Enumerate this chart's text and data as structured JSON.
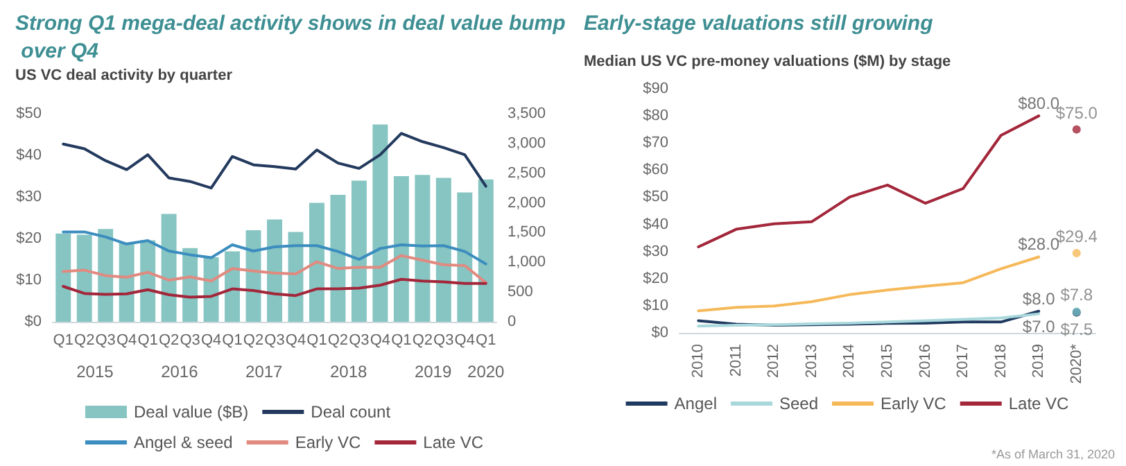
{
  "chart_data": [
    {
      "type": "bar",
      "title": "Strong Q1 mega-deal activity shows in deal value bump over Q4",
      "subtitle": "US VC deal activity by quarter",
      "categories": [
        "Q1",
        "Q2",
        "Q3",
        "Q4",
        "Q1",
        "Q2",
        "Q3",
        "Q4",
        "Q1",
        "Q2",
        "Q3",
        "Q4",
        "Q1",
        "Q2",
        "Q3",
        "Q4",
        "Q1",
        "Q2",
        "Q3",
        "Q4",
        "Q1"
      ],
      "series": [
        {
          "name": "Deal value ($B)",
          "color": "#86c5c2",
          "values": [
            21.2,
            20.9,
            22.3,
            19.0,
            19.6,
            25.9,
            17.7,
            15.5,
            16.9,
            22.0,
            24.6,
            21.6,
            28.6,
            30.5,
            33.9,
            47.4,
            35.0,
            35.3,
            34.6,
            31.1,
            34.2
          ]
        },
        {
          "name": "Deal count",
          "type": "line",
          "axis": "y2",
          "color": "#233a5e",
          "values": [
            2990,
            2910,
            2710,
            2560,
            2810,
            2420,
            2360,
            2250,
            2780,
            2640,
            2610,
            2570,
            2890,
            2670,
            2580,
            2810,
            3170,
            3030,
            2930,
            2810,
            2280
          ]
        },
        {
          "name": "Angel & seed",
          "type": "line",
          "color": "#3c8dbf",
          "values": [
            21.6,
            21.6,
            20.4,
            18.7,
            19.5,
            17.0,
            16.1,
            15.4,
            18.5,
            17.0,
            18.0,
            18.3,
            18.3,
            16.9,
            15.0,
            17.6,
            18.5,
            18.2,
            18.3,
            16.9,
            13.9
          ]
        },
        {
          "name": "Early VC",
          "type": "line",
          "color": "#e08a80",
          "values": [
            12.1,
            12.4,
            11.1,
            10.7,
            11.9,
            10.0,
            10.8,
            9.8,
            12.8,
            12.2,
            11.7,
            11.5,
            14.4,
            12.8,
            13.1,
            13.1,
            15.9,
            14.8,
            13.7,
            13.5,
            9.4
          ]
        },
        {
          "name": "Late VC",
          "type": "line",
          "color": "#a3263a",
          "values": [
            8.5,
            6.8,
            6.6,
            6.7,
            7.7,
            6.5,
            5.9,
            6.1,
            7.9,
            7.5,
            6.7,
            6.3,
            7.9,
            7.9,
            8.1,
            8.8,
            10.2,
            9.8,
            9.6,
            9.2,
            9.2
          ]
        }
      ],
      "ylim": [
        0,
        50
      ],
      "yticks": [
        {
          "value": 0,
          "label": "$0"
        },
        {
          "value": 10,
          "label": "$10"
        },
        {
          "value": 20,
          "label": "$20"
        },
        {
          "value": 30,
          "label": "$30"
        },
        {
          "value": 40,
          "label": "$40"
        },
        {
          "value": 50,
          "label": "$50"
        }
      ],
      "y2lim": [
        0,
        3500
      ],
      "y2ticks": [
        0,
        500,
        {
          "value": 1000,
          "label": "1,000"
        },
        {
          "value": 1500,
          "label": "1,500"
        },
        {
          "value": 2000,
          "label": "2,000"
        },
        {
          "value": 2500,
          "label": "2,500"
        },
        {
          "value": 3000,
          "label": "3,000"
        },
        {
          "value": 3500,
          "label": "3,500"
        }
      ],
      "annotations": [
        "2015",
        "2016",
        "2017",
        "2018",
        "2019",
        "2020"
      ],
      "grid": false,
      "legend": "bottom",
      "marker": "none",
      "line_style": "solid"
    },
    {
      "type": "line",
      "title": "Early-stage valuations still growing",
      "subtitle": "Median US VC pre-money valuations ($M) by stage",
      "categories": [
        "2010",
        "2011",
        "2012",
        "2013",
        "2014",
        "2015",
        "2016",
        "2017",
        "2018",
        "2019",
        "2020*"
      ],
      "series": [
        {
          "name": "Angel",
          "color": "#1f3a5f",
          "values": [
            4.5,
            3.2,
            2.8,
            3.0,
            3.2,
            3.5,
            3.6,
            4.0,
            4.0,
            8.0,
            null
          ],
          "value_labels": [
            null,
            null,
            null,
            null,
            null,
            null,
            null,
            null,
            null,
            "$8.0",
            null
          ]
        },
        {
          "name": "Seed",
          "color": "#a8d8dc",
          "values": [
            2.5,
            2.8,
            3.0,
            3.3,
            3.6,
            4.0,
            4.5,
            5.0,
            5.5,
            7.0,
            null
          ],
          "value_labels": [
            null,
            null,
            null,
            null,
            null,
            null,
            null,
            null,
            null,
            "$7.0",
            null
          ]
        },
        {
          "name": "Early VC",
          "color": "#f5b95a",
          "values": [
            8.1,
            9.4,
            9.9,
            11.5,
            14.1,
            15.8,
            17.2,
            18.5,
            23.6,
            28.0,
            null
          ],
          "value_labels": [
            null,
            null,
            null,
            null,
            null,
            null,
            null,
            null,
            null,
            "$28.0",
            null
          ]
        },
        {
          "name": "Late VC",
          "color": "#a3263a",
          "values": [
            31.7,
            38.2,
            40.2,
            41.0,
            50.1,
            54.5,
            47.8,
            53.2,
            72.8,
            80.0,
            null
          ],
          "value_labels": [
            null,
            null,
            null,
            null,
            null,
            null,
            null,
            null,
            null,
            "$80.0",
            null
          ]
        },
        {
          "type": "scatter",
          "marker": "circle",
          "color": "#1f3a5f",
          "values": [
            null,
            null,
            null,
            null,
            null,
            null,
            null,
            null,
            null,
            null,
            7.5
          ],
          "value_labels": [
            null,
            null,
            null,
            null,
            null,
            null,
            null,
            null,
            null,
            null,
            "$7.5"
          ]
        },
        {
          "type": "scatter",
          "marker": "circle",
          "color": "#6fb7bf",
          "values": [
            null,
            null,
            null,
            null,
            null,
            null,
            null,
            null,
            null,
            null,
            7.8
          ],
          "value_labels": [
            null,
            null,
            null,
            null,
            null,
            null,
            null,
            null,
            null,
            null,
            "$7.8"
          ]
        },
        {
          "type": "scatter",
          "marker": "circle",
          "color": "#f5b95a",
          "values": [
            null,
            null,
            null,
            null,
            null,
            null,
            null,
            null,
            null,
            null,
            29.4
          ],
          "value_labels": [
            null,
            null,
            null,
            null,
            null,
            null,
            null,
            null,
            null,
            null,
            "$29.4"
          ]
        },
        {
          "type": "scatter",
          "marker": "circle",
          "color": "#a3263a",
          "values": [
            null,
            null,
            null,
            null,
            null,
            null,
            null,
            null,
            null,
            null,
            75.0
          ],
          "value_labels": [
            null,
            null,
            null,
            null,
            null,
            null,
            null,
            null,
            null,
            null,
            "$75.0"
          ]
        }
      ],
      "ylim": [
        0,
        90
      ],
      "yticks": [
        {
          "value": 0,
          "label": "$0"
        },
        {
          "value": 10,
          "label": "$10"
        },
        {
          "value": 20,
          "label": "$20"
        },
        {
          "value": 30,
          "label": "$30"
        },
        {
          "value": 40,
          "label": "$40"
        },
        {
          "value": 50,
          "label": "$50"
        },
        {
          "value": 60,
          "label": "$60"
        },
        {
          "value": 70,
          "label": "$70"
        },
        {
          "value": 80,
          "label": "$80"
        },
        {
          "value": 90,
          "label": "$90"
        }
      ],
      "annotations": [
        "*As of March 31, 2020"
      ],
      "grid": false,
      "legend": "bottom",
      "marker": "none",
      "line_style": "solid"
    }
  ]
}
